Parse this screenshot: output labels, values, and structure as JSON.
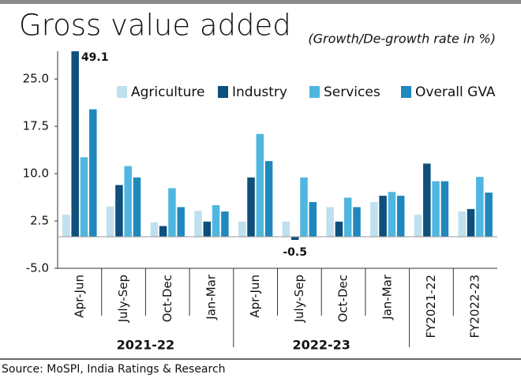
{
  "chart_data": {
    "type": "bar",
    "title": "Gross value added",
    "subtitle": "(Growth/De-growth rate in %)",
    "source": "Source: MoSPI, India Ratings & Research",
    "categories": [
      "Apr-Jun",
      "July-Sep",
      "Oct-Dec",
      "Jan-Mar",
      "Apr-Jun",
      "July-Sep",
      "Oct-Dec",
      "Jan-Mar",
      "FY2021-22",
      "FY2022-23"
    ],
    "year_labels": [
      "2021-22",
      "2022-23"
    ],
    "series": [
      {
        "name": "Agriculture",
        "color": "#bfe0ee",
        "values": [
          3.5,
          4.8,
          2.3,
          4.1,
          2.4,
          2.4,
          4.7,
          5.5,
          3.5,
          4.0
        ]
      },
      {
        "name": "Industry",
        "color": "#0e4f7c",
        "values": [
          49.1,
          8.2,
          1.7,
          2.4,
          9.4,
          -0.5,
          2.4,
          6.5,
          11.6,
          4.4
        ],
        "value_labels": [
          "49.1",
          null,
          null,
          null,
          null,
          "-0.5",
          null,
          null,
          null,
          null
        ]
      },
      {
        "name": "Services",
        "color": "#4fb6e0",
        "values": [
          12.6,
          11.2,
          7.7,
          5.0,
          16.3,
          9.4,
          6.2,
          7.1,
          8.8,
          9.5
        ]
      },
      {
        "name": "Overall GVA",
        "color": "#1f88bd",
        "values": [
          20.2,
          9.4,
          4.7,
          4.0,
          12.0,
          5.5,
          4.7,
          6.5,
          8.8,
          7.0
        ]
      }
    ],
    "ylim": [
      -5,
      29.4
    ],
    "yticks": [
      {
        "value": -5,
        "label": "-5.0"
      },
      2.5,
      {
        "value": 10,
        "label": "10.0"
      },
      17.5,
      {
        "value": 25,
        "label": "25.0"
      }
    ]
  }
}
